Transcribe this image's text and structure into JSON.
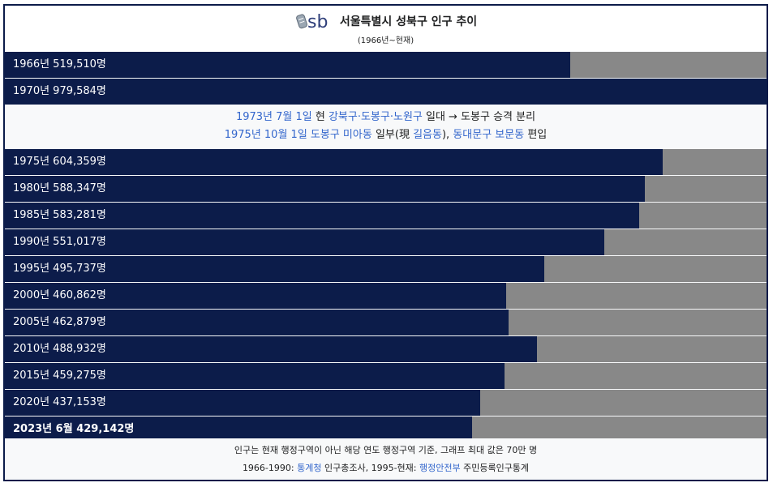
{
  "header": {
    "logo_text": "sb",
    "title": "서울특별시 성북구 인구 추이",
    "subtitle": "(1966년~현재)"
  },
  "chart_data": {
    "type": "bar",
    "orientation": "horizontal",
    "title": "서울특별시 성북구 인구 추이",
    "subtitle": "(1966년~현재)",
    "max_value": 700000,
    "bars": [
      {
        "label": "1966년 519,510명",
        "value": 519510,
        "bold": false
      },
      {
        "label": "1970년 979,584명",
        "value": 979584,
        "bold": false
      },
      {
        "label": "1975년 604,359명",
        "value": 604359,
        "bold": false
      },
      {
        "label": "1980년 588,347명",
        "value": 588347,
        "bold": false
      },
      {
        "label": "1985년 583,281명",
        "value": 583281,
        "bold": false
      },
      {
        "label": "1990년 551,017명",
        "value": 551017,
        "bold": false
      },
      {
        "label": "1995년 495,737명",
        "value": 495737,
        "bold": false
      },
      {
        "label": "2000년 460,862명",
        "value": 460862,
        "bold": false
      },
      {
        "label": "2005년 462,879명",
        "value": 462879,
        "bold": false
      },
      {
        "label": "2010년 488,932명",
        "value": 488932,
        "bold": false
      },
      {
        "label": "2015년 459,275명",
        "value": 459275,
        "bold": false
      },
      {
        "label": "2020년 437,153명",
        "value": 437153,
        "bold": false
      },
      {
        "label": "2023년 6월 429,142명",
        "value": 429142,
        "bold": true
      }
    ],
    "colors": {
      "fill": "#0c1c4a",
      "track": "#888888"
    }
  },
  "note": {
    "line1": {
      "date": "1973년 7월 1일",
      "t1": " 현 ",
      "districts": "강북구·도봉구·노원구",
      "t2": " 일대 → 도봉구 승격 분리"
    },
    "line2": {
      "date": "1975년 10월 1일",
      "t0": " ",
      "l1": "도봉구 미아동",
      "t1": " 일부(現 ",
      "l2": "길음동",
      "t2": "), ",
      "l3": "동대문구 보문동",
      "t3": " 편입"
    }
  },
  "footer": {
    "line1": "인구는 현재 행정구역이 아닌 해당 연도 행정구역 기준, 그래프 최대 값은 70만 명",
    "line2": {
      "t1": "1966-1990: ",
      "l1": "통계청",
      "t2": " 인구총조사, 1995-현재: ",
      "l2": "행정안전부",
      "t3": " 주민등록인구통계"
    }
  }
}
